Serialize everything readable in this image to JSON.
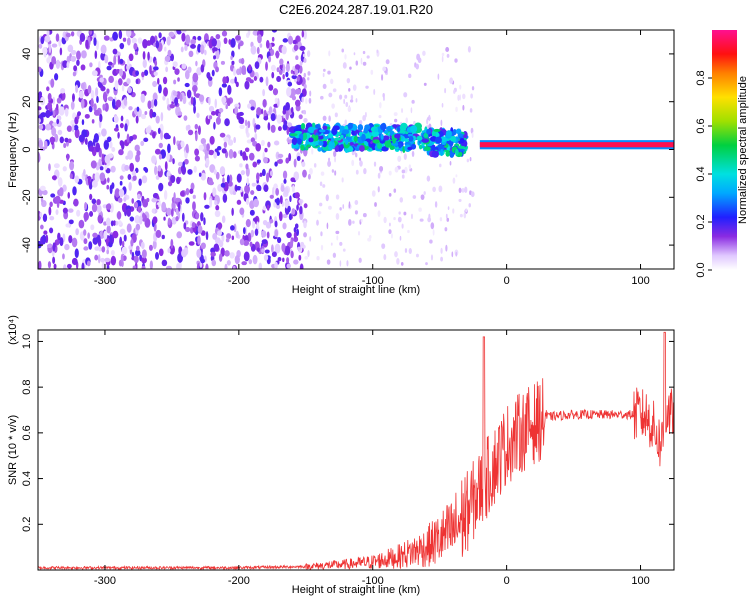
{
  "title": "C2E6.2024.287.19.01.R20",
  "chart_data": [
    {
      "type": "heatmap",
      "xlabel": "Height of straight line (km)",
      "ylabel": "Frequency (Hz)",
      "xlim": [
        -350,
        125
      ],
      "ylim": [
        -50,
        50
      ],
      "x_ticks": [
        -300,
        -200,
        -100,
        0,
        100
      ],
      "y_ticks": [
        -40,
        -20,
        0,
        20,
        40
      ],
      "colorbar": {
        "label": "Normalized spectral amplitude",
        "range": [
          0,
          1
        ],
        "ticks": [
          0.0,
          0.2,
          0.4,
          0.6,
          0.8
        ],
        "tick_labels": [
          "0.0",
          "0.2",
          "0.4",
          "0.6",
          "0.8"
        ]
      },
      "regions": [
        {
          "x_range": [
            -350,
            -150
          ],
          "freq_range": [
            -50,
            50
          ],
          "amplitude": 0.1,
          "description": "broadband noise"
        },
        {
          "x_range": [
            -160,
            -30
          ],
          "freq_center": 3,
          "freq_width": 10,
          "amplitude": 0.35
        },
        {
          "x_range": [
            -20,
            125
          ],
          "freq_center": 2,
          "freq_width": 3,
          "amplitude": 0.95
        }
      ]
    },
    {
      "type": "line",
      "xlabel": "Height of straight line (km)",
      "ylabel": "SNR (10 * v/v)",
      "y_multiplier": "(x10⁴)",
      "xlim": [
        -350,
        125
      ],
      "ylim": [
        0,
        1.05
      ],
      "x_ticks": [
        -300,
        -200,
        -100,
        0,
        100
      ],
      "y_ticks": [
        0.2,
        0.4,
        0.6,
        0.8,
        1.0
      ],
      "series": [
        {
          "color": "#ee3333",
          "x": [
            -350,
            -200,
            -150,
            -120,
            -100,
            -80,
            -60,
            -40,
            -30,
            -20,
            -10,
            0,
            10,
            20,
            30,
            50,
            80,
            95,
            100,
            105,
            110,
            115,
            118,
            120,
            125
          ],
          "y": [
            0.01,
            0.01,
            0.015,
            0.025,
            0.035,
            0.06,
            0.1,
            0.17,
            0.25,
            0.35,
            0.45,
            0.55,
            0.6,
            0.64,
            0.67,
            0.68,
            0.68,
            0.68,
            0.68,
            0.67,
            0.62,
            0.55,
            0.6,
            0.7,
            0.66
          ]
        }
      ]
    }
  ]
}
